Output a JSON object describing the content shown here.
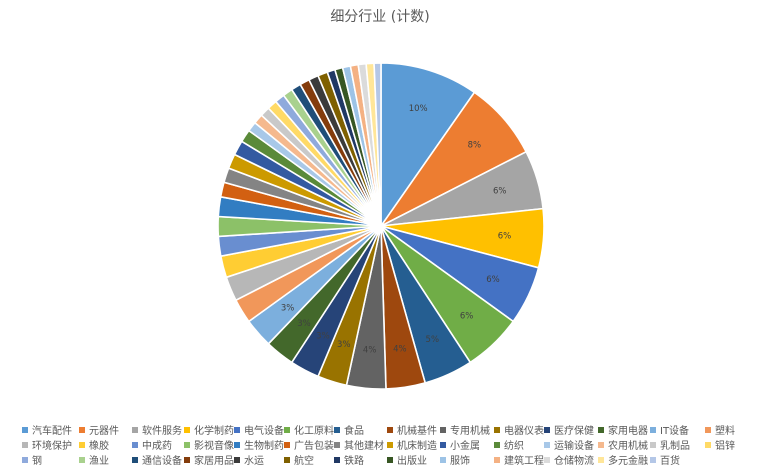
{
  "chart_data": {
    "type": "pie",
    "title": "细分行业 (计数)",
    "legend_position": "bottom",
    "slices": [
      {
        "name": "汽车配件",
        "value": 10,
        "label": "10%",
        "color": "#5B9BD5"
      },
      {
        "name": "元器件",
        "value": 8,
        "label": "8%",
        "color": "#ED7D31"
      },
      {
        "name": "软件服务",
        "value": 6,
        "label": "6%",
        "color": "#A5A5A5"
      },
      {
        "name": "化学制药",
        "value": 6,
        "label": "6%",
        "color": "#FFC000"
      },
      {
        "name": "电气设备",
        "value": 6,
        "label": "6%",
        "color": "#4472C4"
      },
      {
        "name": "化工原料",
        "value": 6,
        "label": "6%",
        "color": "#70AD47"
      },
      {
        "name": "食品",
        "value": 5,
        "label": "5%",
        "color": "#255E91"
      },
      {
        "name": "机械基件",
        "value": 4,
        "label": "4%",
        "color": "#9E480E"
      },
      {
        "name": "专用机械",
        "value": 4,
        "label": "4%",
        "color": "#636363"
      },
      {
        "name": "电器仪表",
        "value": 3,
        "label": "3%",
        "color": "#997300"
      },
      {
        "name": "医疗保健",
        "value": 3,
        "label": "3%",
        "color": "#264478"
      },
      {
        "name": "家用电器",
        "value": 3,
        "label": "3%",
        "color": "#43682B"
      },
      {
        "name": "IT设备",
        "value": 3,
        "label": "3%",
        "color": "#7CAFDD"
      },
      {
        "name": "塑料",
        "value": 2.5,
        "label": "",
        "color": "#F1975A"
      },
      {
        "name": "环境保护",
        "value": 2.5,
        "label": "",
        "color": "#B7B7B7"
      },
      {
        "name": "橡胶",
        "value": 2.2,
        "label": "",
        "color": "#FFCD33"
      },
      {
        "name": "中成药",
        "value": 2,
        "label": "",
        "color": "#698ED0"
      },
      {
        "name": "影视音像",
        "value": 2,
        "label": "",
        "color": "#8CC168"
      },
      {
        "name": "生物制药",
        "value": 2,
        "label": "",
        "color": "#327DC2"
      },
      {
        "name": "广告包装",
        "value": 1.5,
        "label": "",
        "color": "#D26012"
      },
      {
        "name": "其他建材",
        "value": 1.5,
        "label": "",
        "color": "#848484"
      },
      {
        "name": "机床制造",
        "value": 1.5,
        "label": "",
        "color": "#CC9A00"
      },
      {
        "name": "小金属",
        "value": 1.5,
        "label": "",
        "color": "#335AA1"
      },
      {
        "name": "纺织",
        "value": 1.3,
        "label": "",
        "color": "#5A8A39"
      },
      {
        "name": "运输设备",
        "value": 1,
        "label": "",
        "color": "#A8C8E8"
      },
      {
        "name": "农用机械",
        "value": 1,
        "label": "",
        "color": "#F5B98E"
      },
      {
        "name": "乳制品",
        "value": 1,
        "label": "",
        "color": "#C9C9C9"
      },
      {
        "name": "铝锌",
        "value": 1,
        "label": "",
        "color": "#FFDA66"
      },
      {
        "name": "钢",
        "value": 1,
        "label": "",
        "color": "#8FAADC"
      },
      {
        "name": "渔业",
        "value": 1,
        "label": "",
        "color": "#A9D18E"
      },
      {
        "name": "通信设备",
        "value": 1,
        "label": "",
        "color": "#1F4E79"
      },
      {
        "name": "家居用品",
        "value": 1,
        "label": "",
        "color": "#843C0C"
      },
      {
        "name": "水运",
        "value": 1,
        "label": "",
        "color": "#3B3B3B"
      },
      {
        "name": "航空",
        "value": 1,
        "label": "",
        "color": "#7F6000"
      },
      {
        "name": "铁路",
        "value": 0.8,
        "label": "",
        "color": "#203864"
      },
      {
        "name": "出版业",
        "value": 0.8,
        "label": "",
        "color": "#375623"
      },
      {
        "name": "服饰",
        "value": 0.8,
        "label": "",
        "color": "#9DC3E6"
      },
      {
        "name": "建筑工程",
        "value": 0.8,
        "label": "",
        "color": "#F4B183"
      },
      {
        "name": "仓储物流",
        "value": 0.8,
        "label": "",
        "color": "#DBDBDB"
      },
      {
        "name": "多元金融",
        "value": 0.8,
        "label": "",
        "color": "#FFE699"
      },
      {
        "name": "百货",
        "value": 0.7,
        "label": "",
        "color": "#B4C7E7"
      }
    ]
  }
}
